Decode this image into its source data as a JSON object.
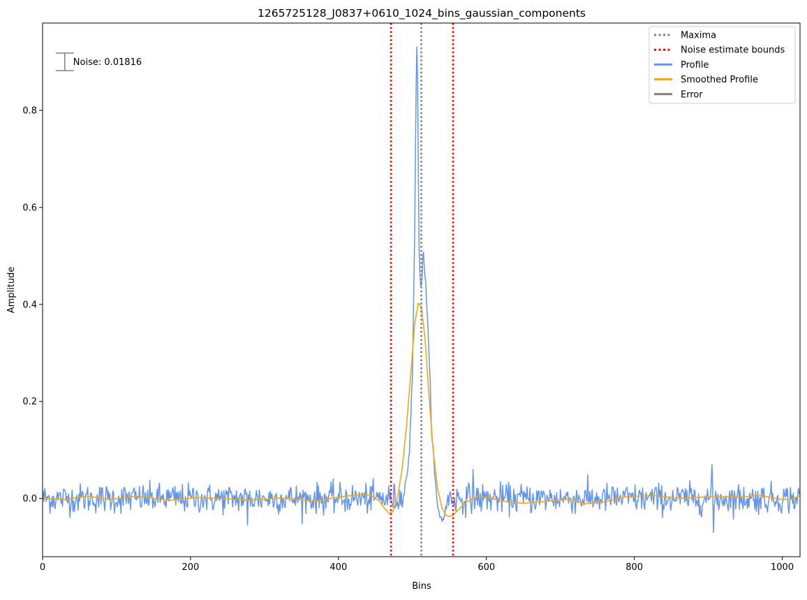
{
  "chart_data": {
    "type": "line",
    "title": "1265725128_J0837+0610_1024_bins_gaussian_components",
    "xlabel": "Bins",
    "ylabel": "Amplitude",
    "xlim": [
      0,
      1024
    ],
    "ylim": [
      -0.12,
      0.98
    ],
    "x_ticks": [
      0,
      200,
      400,
      600,
      800,
      1000
    ],
    "x_tick_labels": [
      "0",
      "200",
      "400",
      "600",
      "800",
      "1000"
    ],
    "y_ticks": [
      0.0,
      0.2,
      0.4,
      0.6,
      0.8
    ],
    "y_tick_labels": [
      "0.0",
      "0.2",
      "0.4",
      "0.6",
      "0.8"
    ],
    "grid": false,
    "legend_position": "top-right",
    "annotation": {
      "label": "Noise: 0.01816",
      "noise": 0.01816,
      "center_x": 30,
      "center_y": 0.9,
      "color": "#808080"
    },
    "vertical_lines": [
      {
        "name": "Maxima",
        "x": 512,
        "color": "#808080",
        "style": "dotted"
      },
      {
        "name": "Noise estimate bounds",
        "x": 471,
        "color": "#ff0000",
        "style": "dotted"
      },
      {
        "name": "Noise estimate bounds",
        "x": 555,
        "color": "#ff0000",
        "style": "dotted"
      }
    ],
    "series": [
      {
        "name": "Profile",
        "color": "#6495ED",
        "noise_sigma": 0.01816,
        "peak_points": [
          {
            "x": 488,
            "y": 0.02
          },
          {
            "x": 492,
            "y": 0.04
          },
          {
            "x": 496,
            "y": 0.1
          },
          {
            "x": 500,
            "y": 0.25
          },
          {
            "x": 503,
            "y": 0.55
          },
          {
            "x": 505,
            "y": 0.85
          },
          {
            "x": 506,
            "y": 0.93
          },
          {
            "x": 507,
            "y": 0.86
          },
          {
            "x": 508,
            "y": 0.68
          },
          {
            "x": 509,
            "y": 0.52
          },
          {
            "x": 510,
            "y": 0.46
          },
          {
            "x": 511,
            "y": 0.44
          },
          {
            "x": 512,
            "y": 0.43
          },
          {
            "x": 513,
            "y": 0.45
          },
          {
            "x": 514,
            "y": 0.5
          },
          {
            "x": 515,
            "y": 0.52
          },
          {
            "x": 516,
            "y": 0.48
          },
          {
            "x": 518,
            "y": 0.44
          },
          {
            "x": 520,
            "y": 0.38
          },
          {
            "x": 523,
            "y": 0.27
          },
          {
            "x": 526,
            "y": 0.15
          },
          {
            "x": 530,
            "y": 0.05
          },
          {
            "x": 534,
            "y": -0.02
          },
          {
            "x": 540,
            "y": -0.045
          },
          {
            "x": 546,
            "y": -0.02
          }
        ],
        "spikes": [
          {
            "x": 905,
            "y": 0.07
          },
          {
            "x": 907,
            "y": -0.07
          },
          {
            "x": 582,
            "y": 0.06
          },
          {
            "x": 277,
            "y": -0.055
          }
        ]
      },
      {
        "name": "Smoothed Profile",
        "color": "#FFA500",
        "points": [
          {
            "x": 0,
            "y": 0.0
          },
          {
            "x": 30,
            "y": -0.002
          },
          {
            "x": 60,
            "y": 0.005
          },
          {
            "x": 90,
            "y": -0.002
          },
          {
            "x": 130,
            "y": 0.005
          },
          {
            "x": 170,
            "y": -0.004
          },
          {
            "x": 210,
            "y": 0.002
          },
          {
            "x": 250,
            "y": -0.001
          },
          {
            "x": 280,
            "y": -0.004
          },
          {
            "x": 320,
            "y": 0.001
          },
          {
            "x": 350,
            "y": -0.003
          },
          {
            "x": 370,
            "y": -0.006
          },
          {
            "x": 400,
            "y": 0.003
          },
          {
            "x": 430,
            "y": 0.008
          },
          {
            "x": 445,
            "y": 0.006
          },
          {
            "x": 455,
            "y": -0.005
          },
          {
            "x": 462,
            "y": -0.02
          },
          {
            "x": 469,
            "y": -0.032
          },
          {
            "x": 474,
            "y": -0.026
          },
          {
            "x": 480,
            "y": 0.005
          },
          {
            "x": 486,
            "y": 0.06
          },
          {
            "x": 492,
            "y": 0.15
          },
          {
            "x": 498,
            "y": 0.26
          },
          {
            "x": 503,
            "y": 0.36
          },
          {
            "x": 508,
            "y": 0.403
          },
          {
            "x": 512,
            "y": 0.395
          },
          {
            "x": 517,
            "y": 0.33
          },
          {
            "x": 522,
            "y": 0.22
          },
          {
            "x": 528,
            "y": 0.1
          },
          {
            "x": 534,
            "y": 0.02
          },
          {
            "x": 540,
            "y": -0.02
          },
          {
            "x": 546,
            "y": -0.036
          },
          {
            "x": 552,
            "y": -0.037
          },
          {
            "x": 560,
            "y": -0.027
          },
          {
            "x": 572,
            "y": -0.008
          },
          {
            "x": 590,
            "y": 0.006
          },
          {
            "x": 620,
            "y": -0.005
          },
          {
            "x": 650,
            "y": -0.01
          },
          {
            "x": 680,
            "y": -0.006
          },
          {
            "x": 710,
            "y": -0.002
          },
          {
            "x": 735,
            "y": -0.011
          },
          {
            "x": 760,
            "y": -0.007
          },
          {
            "x": 790,
            "y": 0.004
          },
          {
            "x": 830,
            "y": 0.006
          },
          {
            "x": 860,
            "y": 0.0
          },
          {
            "x": 880,
            "y": 0.002
          },
          {
            "x": 910,
            "y": 0.004
          },
          {
            "x": 940,
            "y": 0.003
          },
          {
            "x": 970,
            "y": 0.006
          },
          {
            "x": 995,
            "y": -0.001
          },
          {
            "x": 1010,
            "y": -0.003
          },
          {
            "x": 1024,
            "y": 0.006
          }
        ]
      }
    ],
    "legend": [
      {
        "label": "Maxima",
        "color": "#808080",
        "style": "dotted"
      },
      {
        "label": "Noise estimate bounds",
        "color": "#ff0000",
        "style": "dotted"
      },
      {
        "label": "Profile",
        "color": "#6495ED",
        "style": "solid"
      },
      {
        "label": "Smoothed Profile",
        "color": "#FFA500",
        "style": "solid"
      },
      {
        "label": "Error",
        "color": "#808080",
        "style": "solid"
      }
    ]
  }
}
